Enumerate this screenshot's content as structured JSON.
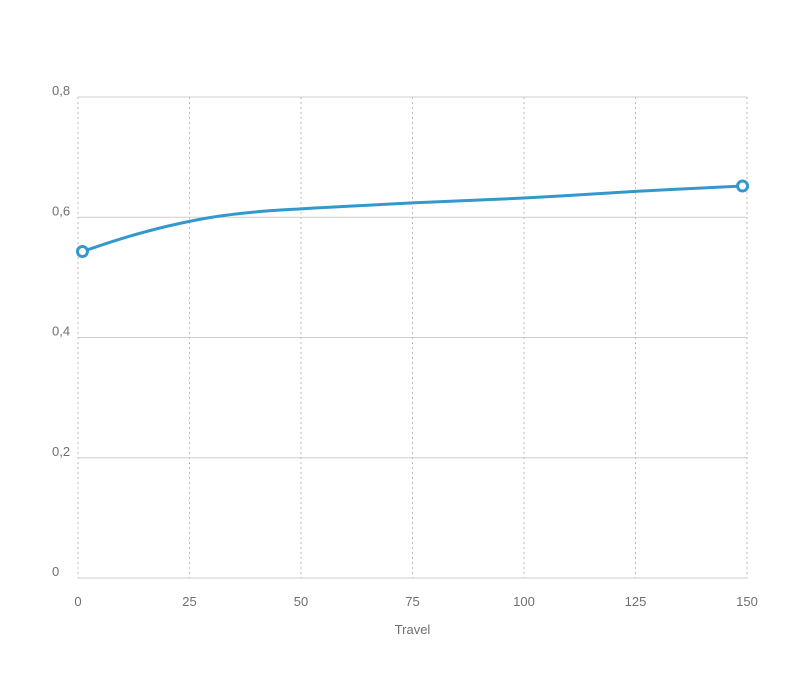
{
  "chart_data": {
    "type": "line",
    "title": "",
    "xlabel": "Travel",
    "ylabel": "",
    "xlim": [
      0,
      150
    ],
    "ylim": [
      0,
      0.8
    ],
    "x_ticks": [
      0,
      25,
      50,
      75,
      100,
      125,
      150
    ],
    "x_tick_labels": [
      "0",
      "25",
      "50",
      "75",
      "100",
      "125",
      "150"
    ],
    "y_ticks": [
      0,
      0.2,
      0.4,
      0.6,
      0.8
    ],
    "y_tick_labels": [
      "0",
      "0,2",
      "0,4",
      "0,6",
      "0,8"
    ],
    "grid": {
      "horizontal": true,
      "vertical": true,
      "vertical_style": "dotted"
    },
    "series": [
      {
        "x": [
          1,
          10,
          20,
          30,
          40,
          50,
          60,
          75,
          100,
          125,
          149
        ],
        "y": [
          0.543,
          0.565,
          0.585,
          0.6,
          0.609,
          0.614,
          0.618,
          0.624,
          0.632,
          0.643,
          0.652
        ],
        "color": "#3399cc",
        "endpoint_markers": true
      }
    ],
    "colors": {
      "grid_horizontal": "#cfcfcf",
      "grid_vertical": "#bdbdbd",
      "text": "#6f6f6f"
    }
  }
}
